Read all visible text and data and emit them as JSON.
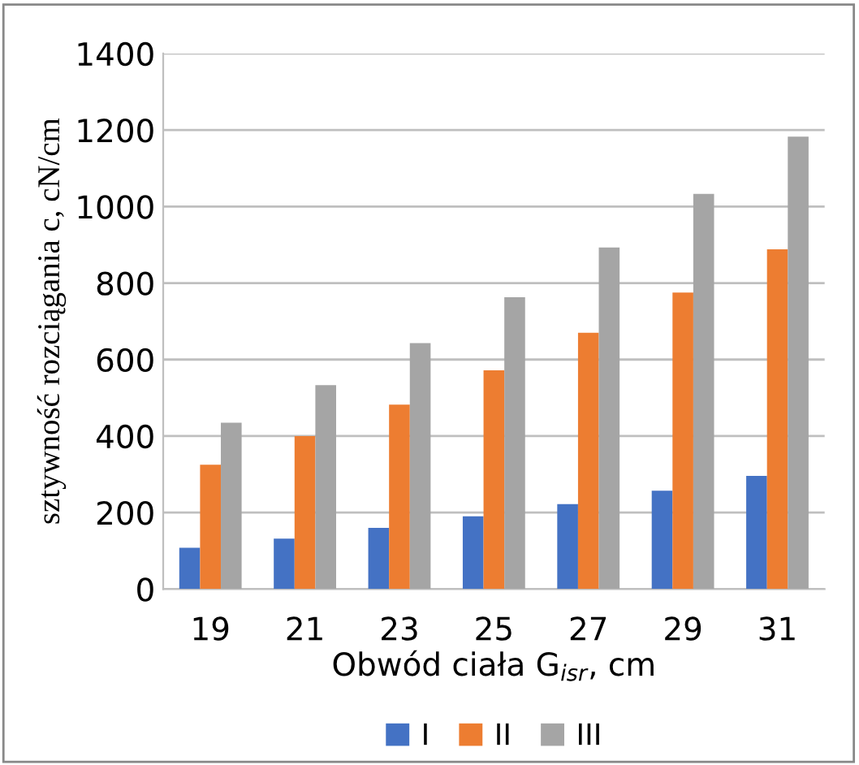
{
  "chart_data": {
    "type": "bar",
    "xlabel": "Obwód ciała G$_{isr}$, cm",
    "ylabel": "sztywność rozciągania c, cN/cm",
    "categories": [
      "19",
      "21",
      "23",
      "25",
      "27",
      "29",
      "31"
    ],
    "series": [
      {
        "name": "I",
        "color": "#4472c4",
        "values": [
          108,
          132,
          160,
          190,
          222,
          257,
          296
        ]
      },
      {
        "name": "II",
        "color": "#ed7d31",
        "values": [
          325,
          400,
          482,
          572,
          670,
          775,
          888
        ]
      },
      {
        "name": "III",
        "color": "#a5a5a5",
        "values": [
          435,
          533,
          643,
          763,
          893,
          1033,
          1183
        ]
      }
    ],
    "ylim": [
      0,
      1400
    ],
    "yticks": [
      0,
      200,
      400,
      600,
      800,
      1000,
      1200,
      1400
    ],
    "grid": "y",
    "legend": "bottom"
  }
}
